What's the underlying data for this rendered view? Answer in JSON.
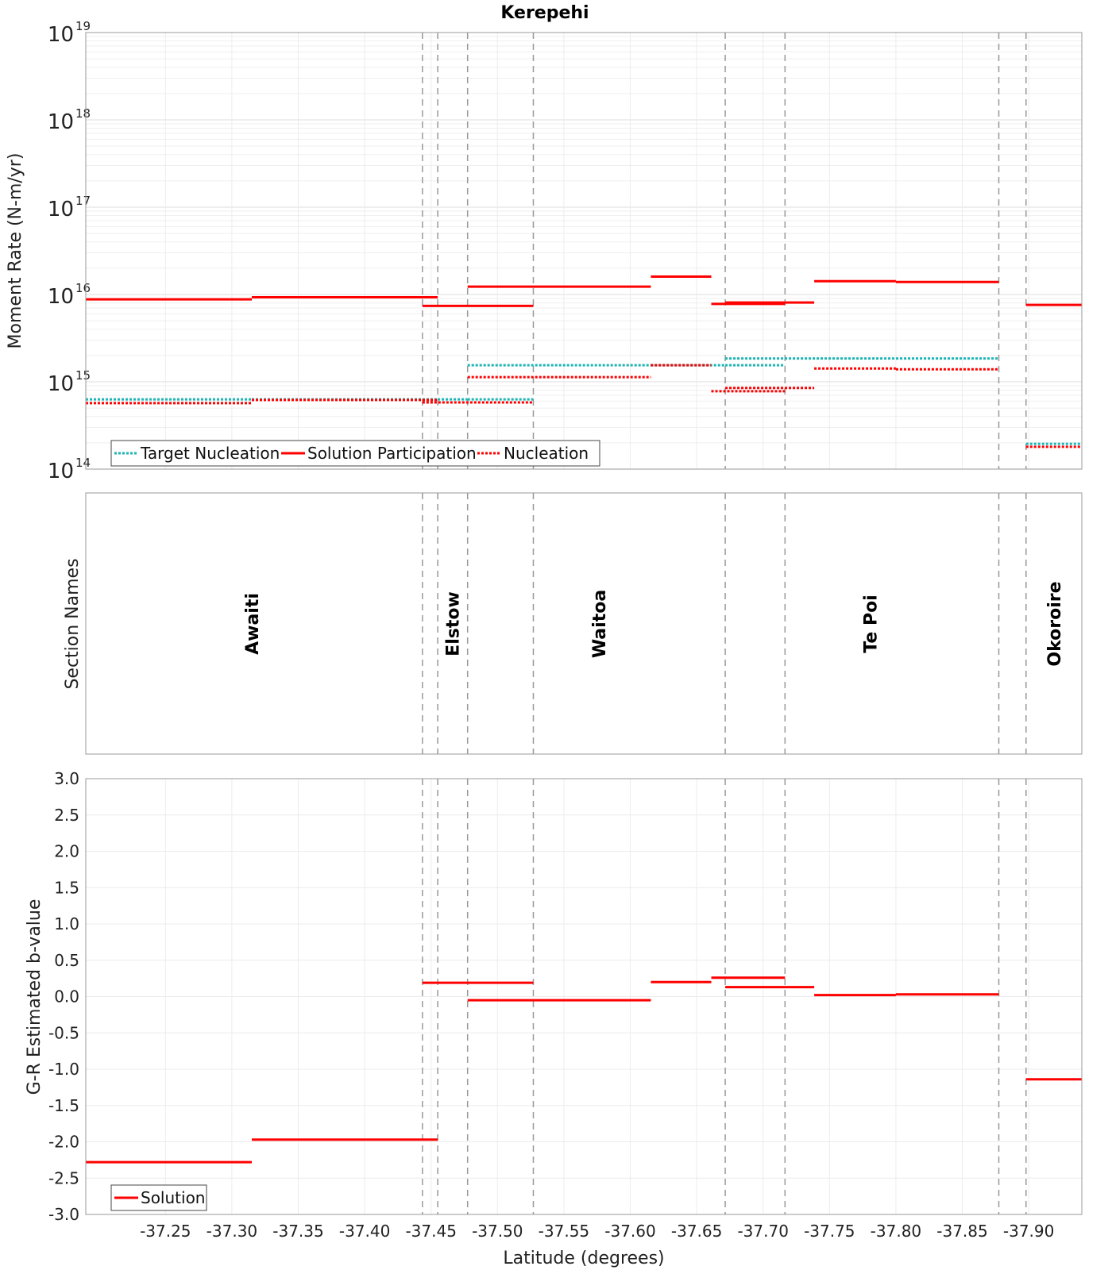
{
  "chart_data": {
    "title": "Kerepehi",
    "xlabel": "Latitude (degrees)",
    "xlim": [
      -37.19,
      -37.94
    ],
    "x_ticks": [
      -37.25,
      -37.3,
      -37.35,
      -37.4,
      -37.45,
      -37.5,
      -37.55,
      -37.6,
      -37.65,
      -37.7,
      -37.75,
      -37.8,
      -37.85,
      -37.9
    ],
    "x_tick_labels": [
      "-37.25",
      "-37.30",
      "-37.35",
      "-37.40",
      "-37.45",
      "-37.50",
      "-37.55",
      "-37.60",
      "-37.65",
      "-37.70",
      "-37.75",
      "-37.80",
      "-37.85",
      "-37.90"
    ],
    "section_boundaries": [
      -37.4435,
      -37.455,
      -37.4775,
      -37.527,
      -37.6715,
      -37.7165,
      -37.8775,
      -37.898
    ],
    "colors": {
      "target": "#1fb5b5",
      "solution": "#ff0000",
      "nucleation": "#ff0000",
      "grid": "#e6e6e6",
      "boundary": "#999999",
      "frame": "#999999"
    },
    "panels": [
      {
        "id": "moment",
        "type": "line",
        "ylabel": "Moment Rate (N-m/yr)",
        "yscale": "log",
        "ylim": [
          100000000000000.0,
          1e+19
        ],
        "y_ticks": [
          {
            "base": "10",
            "exp": "14",
            "value": 100000000000000.0
          },
          {
            "base": "10",
            "exp": "15",
            "value": 1000000000000000.0
          },
          {
            "base": "10",
            "exp": "16",
            "value": 1e+16
          },
          {
            "base": "10",
            "exp": "17",
            "value": 1e+17
          },
          {
            "base": "10",
            "exp": "18",
            "value": 1e+18
          },
          {
            "base": "10",
            "exp": "19",
            "value": 1e+19
          }
        ],
        "legend": {
          "position": "bottom-left",
          "entries": [
            {
              "name": "Target Nucleation",
              "style": "target"
            },
            {
              "name": "Solution Participation",
              "style": "solution"
            },
            {
              "name": "Nucleation",
              "style": "nucleation"
            }
          ]
        },
        "series": [
          {
            "name": "Target Nucleation",
            "style": "target",
            "segments": [
              {
                "x": [
                  -37.19,
                  -37.315
                ],
                "y": 630000000000000.0
              },
              {
                "x": [
                  -37.315,
                  -37.4435
                ],
                "y": 630000000000000.0
              },
              {
                "x": [
                  -37.4435,
                  -37.455
                ],
                "y": 630000000000000.0
              },
              {
                "x": [
                  -37.455,
                  -37.4775
                ],
                "y": 630000000000000.0
              },
              {
                "x": [
                  -37.4775,
                  -37.527
                ],
                "y": 630000000000000.0
              },
              {
                "x": [
                  -37.4775,
                  -37.6715
                ],
                "y": 1550000000000000.0
              },
              {
                "x": [
                  -37.6715,
                  -37.7165
                ],
                "y": 1550000000000000.0
              },
              {
                "x": [
                  -37.6715,
                  -37.8775
                ],
                "y": 1850000000000000.0
              },
              {
                "x": [
                  -37.898,
                  -37.94
                ],
                "y": 195000000000000.0
              }
            ]
          },
          {
            "name": "Solution Participation",
            "style": "solution",
            "segments": [
              {
                "x": [
                  -37.19,
                  -37.315
                ],
                "y": 8800000000000000.0
              },
              {
                "x": [
                  -37.315,
                  -37.455
                ],
                "y": 9300000000000000.0
              },
              {
                "x": [
                  -37.4435,
                  -37.527
                ],
                "y": 7400000000000000.0
              },
              {
                "x": [
                  -37.4775,
                  -37.6155
                ],
                "y": 1.23e+16
              },
              {
                "x": [
                  -37.6155,
                  -37.661
                ],
                "y": 1.6e+16
              },
              {
                "x": [
                  -37.661,
                  -37.7165
                ],
                "y": 7800000000000000.0
              },
              {
                "x": [
                  -37.6715,
                  -37.7385
                ],
                "y": 8100000000000000.0
              },
              {
                "x": [
                  -37.7385,
                  -37.8
                ],
                "y": 1.42e+16
              },
              {
                "x": [
                  -37.8,
                  -37.8775
                ],
                "y": 1.39e+16
              },
              {
                "x": [
                  -37.898,
                  -37.94
                ],
                "y": 7600000000000000.0
              }
            ]
          },
          {
            "name": "Nucleation",
            "style": "nucleation",
            "segments": [
              {
                "x": [
                  -37.19,
                  -37.315
                ],
                "y": 570000000000000.0
              },
              {
                "x": [
                  -37.315,
                  -37.455
                ],
                "y": 620000000000000.0
              },
              {
                "x": [
                  -37.4435,
                  -37.527
                ],
                "y": 580000000000000.0
              },
              {
                "x": [
                  -37.4775,
                  -37.6155
                ],
                "y": 1130000000000000.0
              },
              {
                "x": [
                  -37.6155,
                  -37.661
                ],
                "y": 1550000000000000.0
              },
              {
                "x": [
                  -37.661,
                  -37.7165
                ],
                "y": 780000000000000.0
              },
              {
                "x": [
                  -37.6715,
                  -37.7385
                ],
                "y": 850000000000000.0
              },
              {
                "x": [
                  -37.7385,
                  -37.8
                ],
                "y": 1420000000000000.0
              },
              {
                "x": [
                  -37.8,
                  -37.8775
                ],
                "y": 1390000000000000.0
              },
              {
                "x": [
                  -37.898,
                  -37.94
                ],
                "y": 180000000000000.0
              }
            ]
          }
        ]
      },
      {
        "id": "sections",
        "type": "table",
        "ylabel": "Section Names",
        "sections": [
          {
            "name": "Awaiti",
            "x": -37.315
          },
          {
            "name": "Elstow",
            "x": -37.466
          },
          {
            "name": "Waitoa",
            "x": -37.5765
          },
          {
            "name": "Te Poi",
            "x": -37.7805
          },
          {
            "name": "Okoroire",
            "x": -37.919
          }
        ]
      },
      {
        "id": "bvalue",
        "type": "line",
        "ylabel": "G-R Estimated b-value",
        "yscale": "linear",
        "ylim": [
          -3.0,
          3.0
        ],
        "y_ticks": [
          3.0,
          2.5,
          2.0,
          1.5,
          1.0,
          0.5,
          0.0,
          -0.5,
          -1.0,
          -1.5,
          -2.0,
          -2.5,
          -3.0
        ],
        "y_tick_labels": [
          "3.0",
          "2.5",
          "2.0",
          "1.5",
          "1.0",
          "0.5",
          "0.0",
          "-0.5",
          "-1.0",
          "-1.5",
          "-2.0",
          "-2.5",
          "-3.0"
        ],
        "legend": {
          "position": "bottom-left",
          "entries": [
            {
              "name": "Solution",
              "style": "solution"
            }
          ]
        },
        "series": [
          {
            "name": "Solution",
            "style": "solution",
            "segments": [
              {
                "x": [
                  -37.19,
                  -37.315
                ],
                "y": -2.28
              },
              {
                "x": [
                  -37.315,
                  -37.455
                ],
                "y": -1.97
              },
              {
                "x": [
                  -37.4435,
                  -37.527
                ],
                "y": 0.19
              },
              {
                "x": [
                  -37.4775,
                  -37.6155
                ],
                "y": -0.05
              },
              {
                "x": [
                  -37.6155,
                  -37.661
                ],
                "y": 0.2
              },
              {
                "x": [
                  -37.661,
                  -37.7165
                ],
                "y": 0.26
              },
              {
                "x": [
                  -37.6715,
                  -37.7385
                ],
                "y": 0.13
              },
              {
                "x": [
                  -37.7385,
                  -37.8
                ],
                "y": 0.02
              },
              {
                "x": [
                  -37.8,
                  -37.8775
                ],
                "y": 0.03
              },
              {
                "x": [
                  -37.898,
                  -37.94
                ],
                "y": -1.14
              }
            ]
          }
        ]
      }
    ]
  }
}
